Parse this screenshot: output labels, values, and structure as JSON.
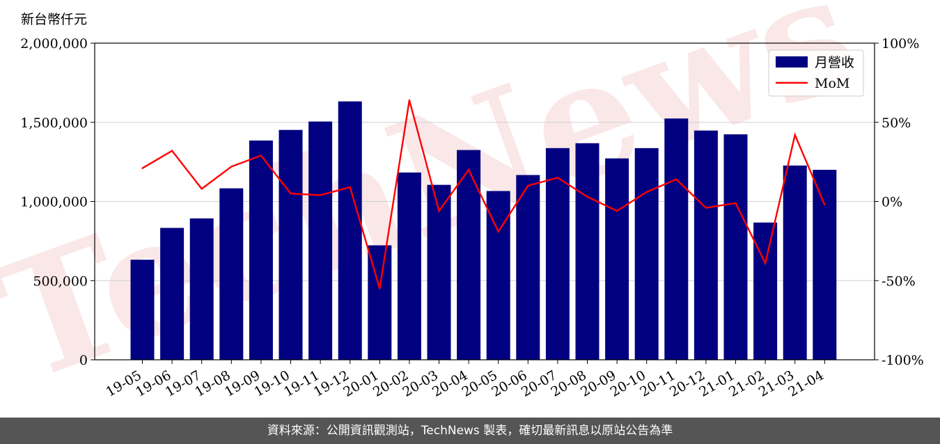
{
  "footer": {
    "source_text": "資料來源：公開資訊觀測站，TechNews 製表，確切最新訊息以原站公告為準"
  },
  "watermark": {
    "text": "TechNews",
    "color": "#f4cccc"
  },
  "colors": {
    "bar": "#000080",
    "line": "#ff0000",
    "footer_bg": "#555555"
  },
  "chart_data": {
    "type": "bar",
    "y_unit_label": "新台幣仟元",
    "categories": [
      "19-05",
      "19-06",
      "19-07",
      "19-08",
      "19-09",
      "19-10",
      "19-11",
      "19-12",
      "20-01",
      "20-02",
      "20-03",
      "20-04",
      "20-05",
      "20-06",
      "20-07",
      "20-08",
      "20-09",
      "20-10",
      "20-11",
      "20-12",
      "21-01",
      "21-02",
      "21-03",
      "21-04"
    ],
    "series": [
      {
        "name": "月營收",
        "kind": "bar",
        "axis": "left",
        "values": [
          632000,
          833000,
          893000,
          1083000,
          1385000,
          1452000,
          1505000,
          1632000,
          723000,
          1183000,
          1105000,
          1325000,
          1066000,
          1167000,
          1337000,
          1368000,
          1272000,
          1337000,
          1524000,
          1448000,
          1424000,
          867000,
          1227000,
          1200000
        ]
      },
      {
        "name": "MoM",
        "kind": "line",
        "axis": "right",
        "values": [
          21,
          32,
          8,
          22,
          29,
          5,
          4,
          9,
          -55,
          64,
          -6,
          20,
          -19,
          10,
          15,
          3,
          -6,
          6,
          14,
          -4,
          -1,
          -39,
          42,
          -2
        ]
      }
    ],
    "y_left": {
      "range": [
        0,
        2000000
      ],
      "ticks": [
        0,
        500000,
        1000000,
        1500000,
        2000000
      ],
      "tick_labels": [
        "0",
        "500,000",
        "1,000,000",
        "1,500,000",
        "2,000,000"
      ]
    },
    "y_right": {
      "range": [
        -100,
        100
      ],
      "ticks": [
        -100,
        -50,
        0,
        50,
        100
      ],
      "tick_labels": [
        "-100%",
        "-50%",
        "0%",
        "50%",
        "100%"
      ]
    },
    "grid": "horizontal",
    "legend": {
      "position": "top-right",
      "entries": [
        "月營收",
        "MoM"
      ]
    }
  }
}
